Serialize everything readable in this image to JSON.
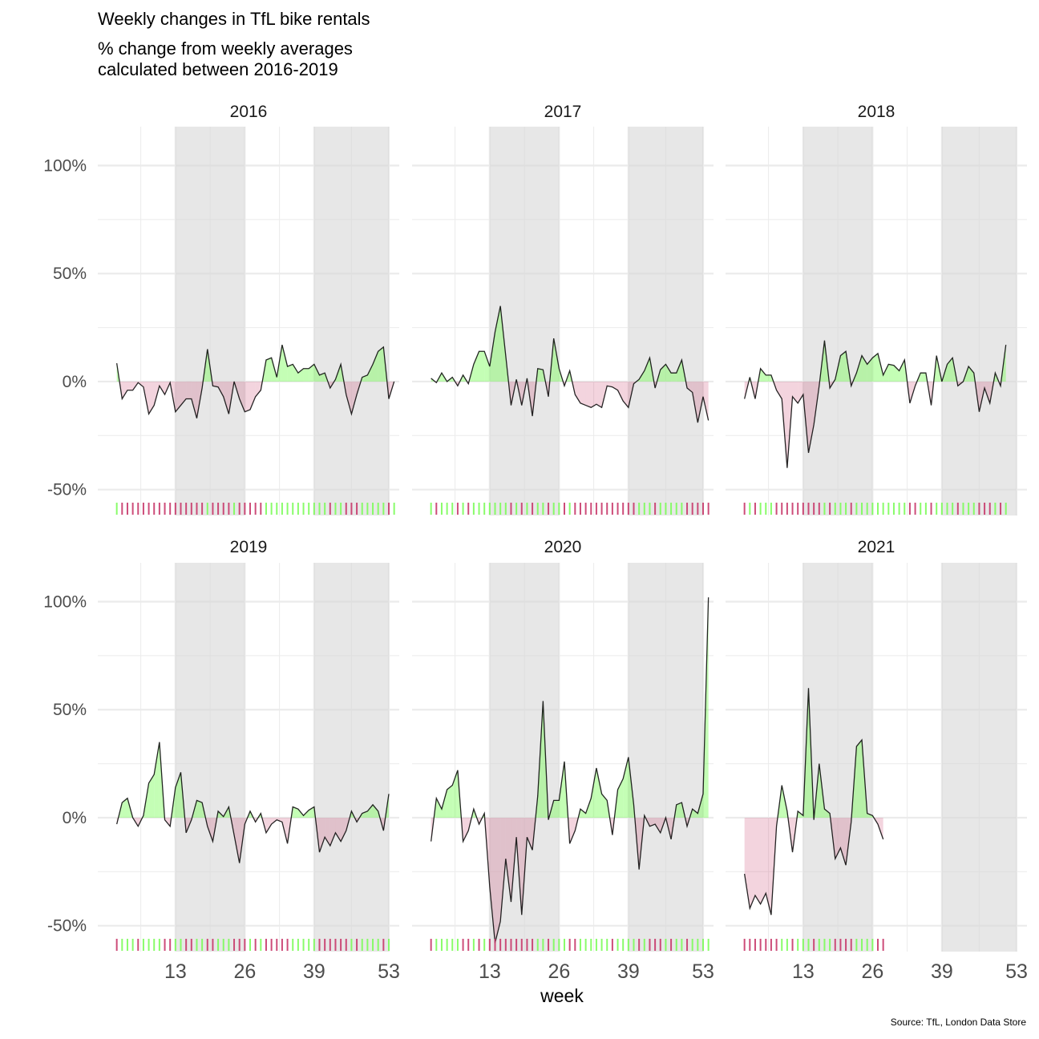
{
  "chart_data": {
    "type": "area",
    "title": "Weekly changes in TfL bike rentals",
    "subtitle_lines": [
      "% change from weekly averages",
      "calculated between 2016-2019"
    ],
    "xlabel": "week",
    "ylabel": "",
    "caption": "Source: TfL, London Data Store",
    "y_unit": "%",
    "ylim": [
      -62,
      118
    ],
    "y_ticks": [
      -50,
      0,
      50,
      100
    ],
    "y_tick_labels": [
      "-50%",
      "0%",
      "50%",
      "100%"
    ],
    "x_ticks": [
      13,
      26,
      39,
      53
    ],
    "x_tick_labels": [
      "13",
      "26",
      "39",
      "53"
    ],
    "xlim": [
      1,
      53
    ],
    "shaded_weeks": [
      [
        13,
        26
      ],
      [
        39,
        53
      ]
    ],
    "colors": {
      "positive": "#7CFC5A",
      "negative": "#C8396A",
      "shade": "#E5E5E5",
      "grid": "#EBEBEB",
      "line": "#000000"
    },
    "facets": [
      {
        "year": "2016",
        "start_week": 2,
        "values": [
          8.5,
          -8,
          -4,
          -4,
          -0.5,
          -2.5,
          -15,
          -11,
          -2,
          -6,
          -0.5,
          -14,
          -11,
          -8,
          -8,
          -17,
          -3,
          15,
          -2,
          -2.5,
          -7,
          -15,
          0,
          -8,
          -14,
          -13,
          -7,
          -4,
          10,
          11,
          2,
          17,
          7,
          8,
          4,
          6,
          6,
          8,
          3,
          4,
          -3,
          1,
          8,
          -6,
          -15,
          -6,
          2,
          3,
          8,
          14,
          16,
          -8,
          0
        ]
      },
      {
        "year": "2017",
        "start_week": 2,
        "values": [
          1.5,
          -0.5,
          4,
          0,
          2,
          -2,
          3,
          -1,
          8,
          14,
          14,
          7,
          23,
          35,
          12,
          -11,
          1,
          -11,
          1.5,
          -16,
          6,
          5.5,
          -7,
          20,
          6,
          -2,
          5,
          -6,
          -10,
          -11,
          -12,
          -10.5,
          -12,
          -2,
          -2.5,
          -4,
          -9,
          -12,
          -1,
          1,
          5,
          11,
          -3,
          5.5,
          8,
          4,
          4,
          10,
          -3,
          -5,
          -19,
          -7,
          -18
        ]
      },
      {
        "year": "2018",
        "start_week": 2,
        "values": [
          -8,
          2,
          -8,
          6,
          3,
          3,
          -4,
          -8,
          -40,
          -7,
          -10,
          -6,
          -33,
          -20,
          -2,
          19,
          -3,
          1,
          12,
          14,
          -2,
          4,
          12,
          8,
          11,
          13,
          3,
          8,
          7.5,
          5,
          10,
          -10,
          -2,
          4,
          4,
          -11,
          12,
          0,
          8,
          11,
          -2,
          0,
          7,
          4,
          -14,
          -3,
          -10,
          4,
          -2,
          17
        ]
      },
      {
        "year": "2019",
        "start_week": 2,
        "values": [
          -3,
          7,
          9,
          0,
          -4,
          1,
          16,
          20,
          35,
          -1,
          -4,
          14,
          21,
          -7,
          -1,
          8,
          7,
          -4,
          -11,
          3,
          0.5,
          5,
          -8,
          -21,
          -3,
          3,
          -2,
          2,
          -7,
          -3,
          -1,
          -2,
          -12,
          5,
          4,
          1,
          3.5,
          5,
          -16,
          -9,
          -13,
          -7,
          -11,
          -6,
          3,
          -2,
          2,
          3,
          6,
          3,
          -6,
          11
        ]
      },
      {
        "year": "2020",
        "start_week": 2,
        "values": [
          -11,
          9,
          4,
          13,
          15,
          22,
          -11,
          -6,
          4,
          -3,
          2,
          -32,
          -58,
          -48,
          -19,
          -39,
          -9,
          -45,
          -9,
          -15,
          10,
          54,
          -1,
          8,
          8,
          26,
          -12,
          -6,
          4,
          2,
          9,
          23,
          11,
          8,
          -8,
          13,
          18,
          28,
          6,
          -24,
          1,
          -4,
          -3,
          -7,
          0,
          -10,
          6,
          7,
          -4,
          4,
          2,
          11,
          102
        ]
      },
      {
        "year": "2021",
        "start_week": 2,
        "values": [
          -26,
          -42,
          -36,
          -40,
          -35,
          -45,
          -4,
          15,
          3,
          -16,
          3,
          1,
          60,
          -1,
          25,
          4,
          2,
          -19,
          -14,
          -22,
          -2,
          33,
          36,
          2,
          1,
          -3,
          -10
        ]
      }
    ]
  }
}
